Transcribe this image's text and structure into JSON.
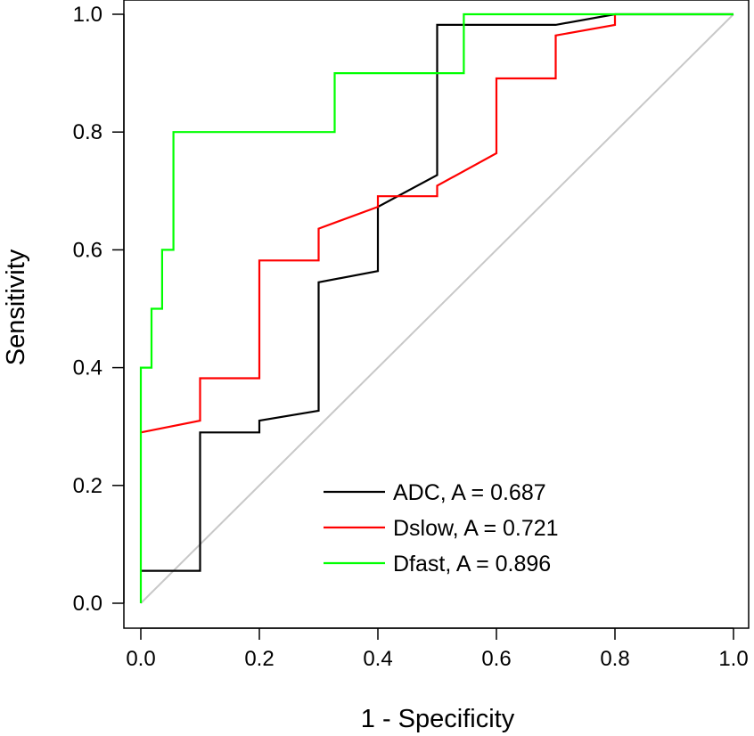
{
  "chart_data": {
    "type": "line",
    "title": "",
    "xlabel": "1 - Specificity",
    "ylabel": "Sensitivity",
    "xlim": [
      0.0,
      1.0
    ],
    "ylim": [
      0.0,
      1.0
    ],
    "x_ticks": [
      "0.0",
      "0.2",
      "0.4",
      "0.6",
      "0.8",
      "1.0"
    ],
    "y_ticks": [
      "0.0",
      "0.2",
      "0.4",
      "0.6",
      "0.8",
      "1.0"
    ],
    "grid": false,
    "legend_position": "bottom-right",
    "reference_line": {
      "name": "chance",
      "color": "#c8c8c8",
      "x": [
        0.0,
        1.0
      ],
      "y": [
        0.0,
        1.0
      ]
    },
    "series": [
      {
        "name": "ADC",
        "label": "ADC, A = 0.687",
        "auc": 0.687,
        "color": "#000000",
        "x": [
          0.0,
          0.1,
          0.1,
          0.2,
          0.2,
          0.3,
          0.3,
          0.4,
          0.4,
          0.5,
          0.5,
          0.7,
          0.8,
          1.0
        ],
        "y": [
          0.055,
          0.055,
          0.29,
          0.29,
          0.31,
          0.327,
          0.545,
          0.564,
          0.673,
          0.727,
          0.982,
          0.982,
          1.0,
          1.0
        ]
      },
      {
        "name": "Dslow",
        "label": "Dslow, A = 0.721",
        "auc": 0.721,
        "color": "#ff0000",
        "x": [
          0.0,
          0.1,
          0.1,
          0.2,
          0.2,
          0.3,
          0.3,
          0.4,
          0.4,
          0.5,
          0.5,
          0.6,
          0.6,
          0.7,
          0.7,
          0.8,
          0.8
        ],
        "y": [
          0.29,
          0.31,
          0.382,
          0.382,
          0.582,
          0.582,
          0.636,
          0.673,
          0.691,
          0.691,
          0.709,
          0.764,
          0.891,
          0.891,
          0.964,
          0.982,
          1.0
        ]
      },
      {
        "name": "Dfast",
        "label": "Dfast, A = 0.896",
        "auc": 0.896,
        "color": "#00ff00",
        "x": [
          0.0,
          0.0,
          0.018,
          0.018,
          0.036,
          0.036,
          0.055,
          0.055,
          0.327,
          0.327,
          0.545,
          0.545,
          1.0
        ],
        "y": [
          0.0,
          0.4,
          0.4,
          0.5,
          0.5,
          0.6,
          0.6,
          0.8,
          0.8,
          0.9,
          0.9,
          1.0,
          1.0
        ]
      }
    ]
  }
}
